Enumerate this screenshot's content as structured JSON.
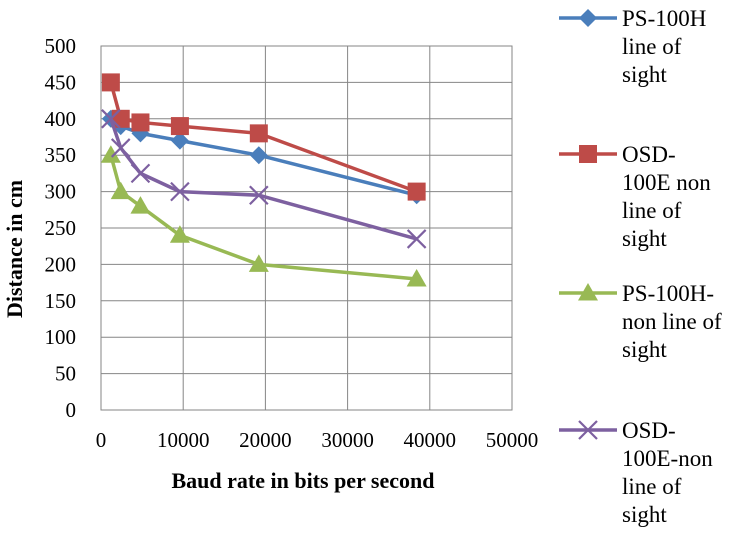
{
  "chart_data": {
    "type": "line",
    "title": "",
    "xlabel": "Baud rate in bits per second",
    "ylabel": "Distance in cm",
    "xlim": [
      0,
      50000
    ],
    "ylim": [
      0,
      500
    ],
    "x_ticks": [
      "0",
      "10000",
      "20000",
      "30000",
      "40000",
      "50000"
    ],
    "y_ticks": [
      "0",
      "50",
      "100",
      "150",
      "200",
      "250",
      "300",
      "350",
      "400",
      "450",
      "500"
    ],
    "grid": true,
    "legend_position": "right",
    "series": [
      {
        "name": "PS-100H line of sight",
        "legend_lines": [
          "PS-100H",
          "line of",
          "sight"
        ],
        "color": "#4a7ebb",
        "marker": "diamond",
        "x": [
          1200,
          2400,
          4800,
          9600,
          19200,
          38400
        ],
        "y": [
          400,
          390,
          380,
          370,
          350,
          295
        ]
      },
      {
        "name": "OSD-100E non line of sight",
        "legend_lines": [
          "OSD-",
          "100E non",
          "line of",
          "sight"
        ],
        "color": "#be4b48",
        "marker": "square",
        "x": [
          1200,
          2400,
          4800,
          9600,
          19200,
          38400
        ],
        "y": [
          450,
          400,
          395,
          390,
          380,
          300
        ]
      },
      {
        "name": "PS-100H- non line of sight",
        "legend_lines": [
          "PS-100H-",
          "non line of",
          "sight"
        ],
        "color": "#98b954",
        "marker": "triangle",
        "x": [
          1200,
          2400,
          4800,
          9600,
          19200,
          38400
        ],
        "y": [
          350,
          300,
          280,
          240,
          200,
          180
        ]
      },
      {
        "name": "OSD-100E-non line of sight",
        "legend_lines": [
          "OSD-",
          "100E-non",
          "line of",
          "sight"
        ],
        "color": "#7d60a0",
        "marker": "x",
        "x": [
          1200,
          2400,
          4800,
          9600,
          19200,
          38400
        ],
        "y": [
          400,
          360,
          325,
          300,
          295,
          235
        ]
      }
    ]
  }
}
